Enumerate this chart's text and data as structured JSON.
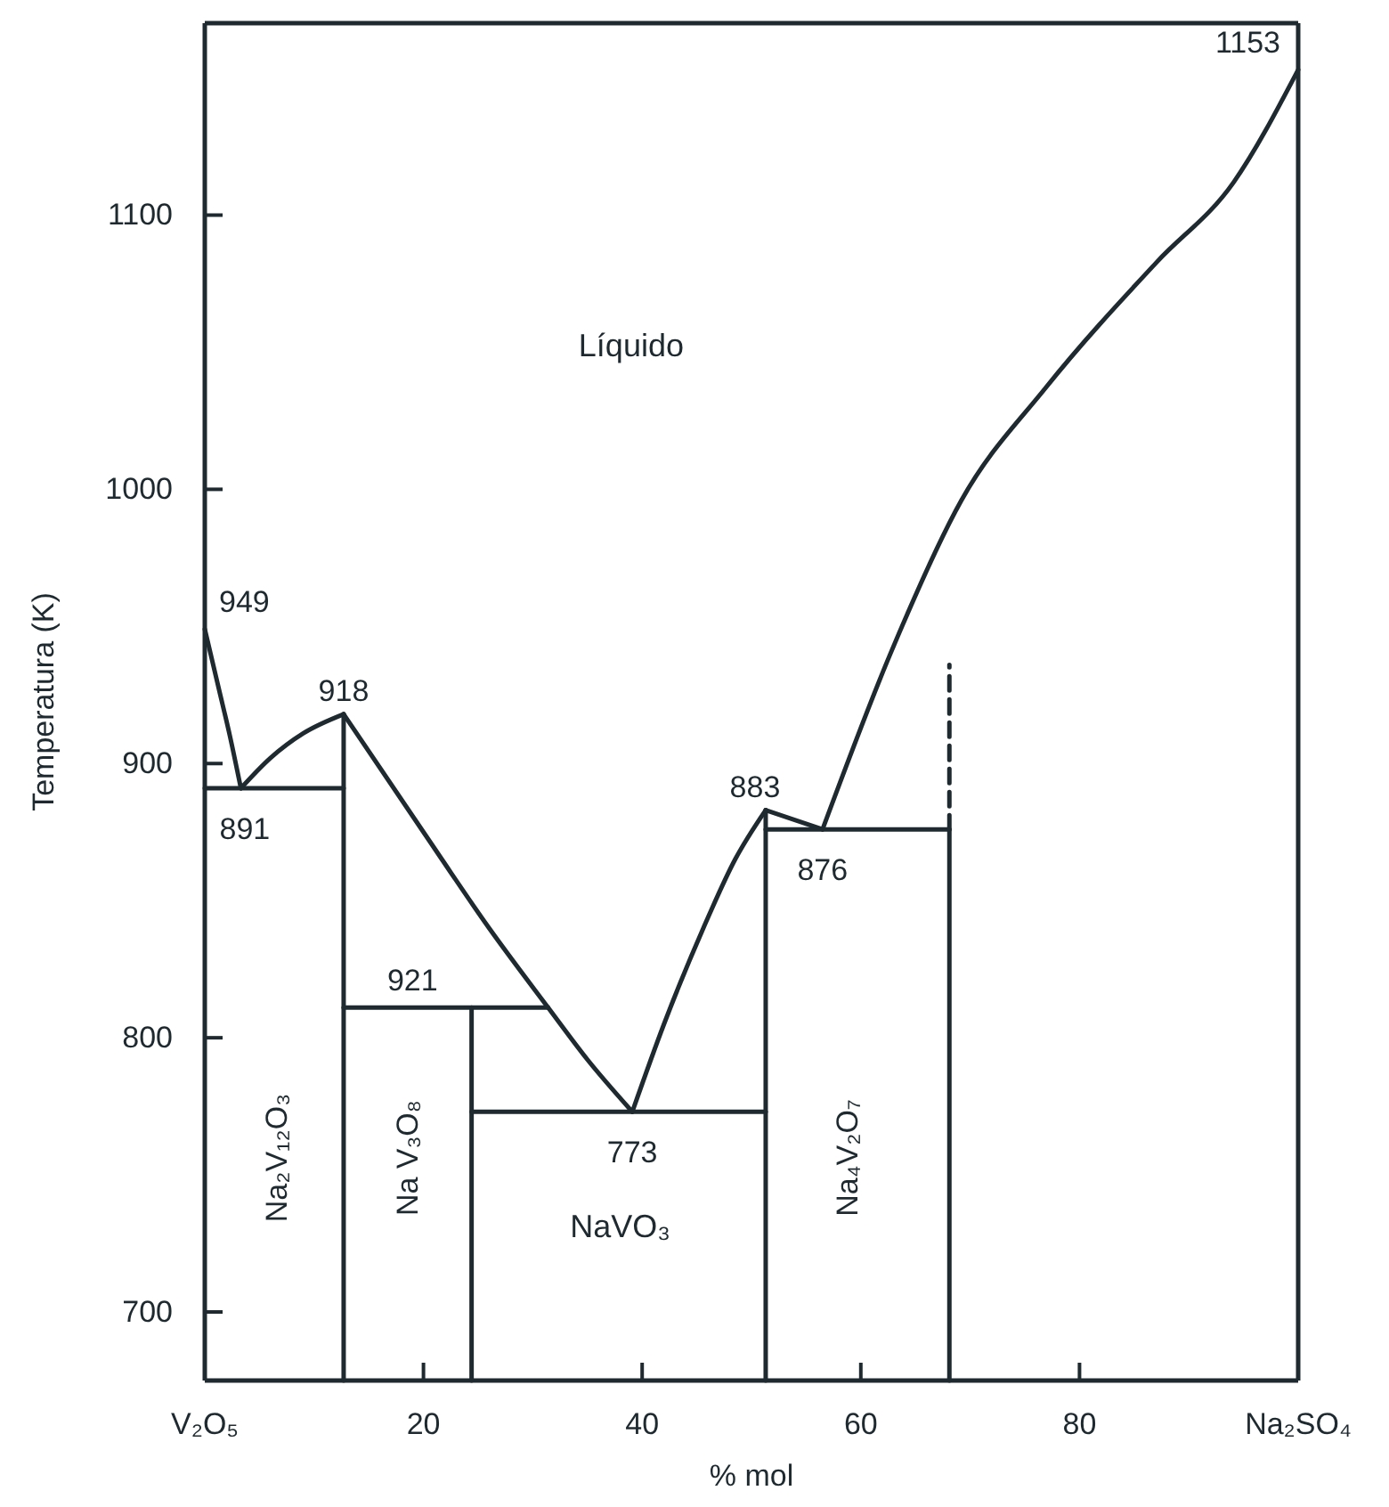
{
  "chart_data": {
    "type": "line",
    "xlabel": "% mol",
    "ylabel": "Temperatura (K)",
    "xlim": [
      0,
      100
    ],
    "ylim": [
      675,
      1170
    ],
    "xticks": [
      {
        "value": 0,
        "label": "V₂O₅"
      },
      20,
      40,
      60,
      80,
      {
        "value": 100,
        "label": "Na₂SO₄"
      }
    ],
    "yticks": [
      700,
      800,
      900,
      1000,
      1100
    ],
    "grid": false,
    "marker": "none",
    "series": [
      {
        "color": "#1e2a30",
        "x": [
          0,
          1.3,
          2.3,
          3.3
        ],
        "values": [
          949,
          927,
          910,
          891
        ]
      },
      {
        "color": "#1e2a30",
        "x": [
          3.3,
          6,
          9,
          12.7
        ],
        "values": [
          891,
          902,
          911,
          918
        ]
      },
      {
        "color": "#1e2a30",
        "x": [
          12.7,
          20,
          26,
          31.4,
          35,
          39.1
        ],
        "values": [
          918,
          875,
          840,
          811,
          792,
          773
        ]
      },
      {
        "color": "#1e2a30",
        "x": [
          39.1,
          42,
          45.6,
          48.5,
          51.3
        ],
        "values": [
          773,
          805,
          840,
          865,
          883
        ]
      },
      {
        "color": "#1e2a30",
        "x": [
          51.3,
          56.5
        ],
        "values": [
          883,
          876
        ]
      },
      {
        "color": "#1e2a30",
        "x": [
          56.5,
          62.7,
          69.2,
          76.9,
          87.1,
          94.1,
          100
        ],
        "values": [
          876,
          940,
          996,
          1037,
          1083,
          1112,
          1153
        ]
      },
      {
        "color": "#1e2a30",
        "x": [
          0,
          12.7
        ],
        "values": [
          891,
          891
        ]
      },
      {
        "color": "#1e2a30",
        "x": [
          12.7,
          12.7
        ],
        "values": [
          675,
          918
        ]
      },
      {
        "color": "#1e2a30",
        "x": [
          12.7,
          31.4
        ],
        "values": [
          811,
          811
        ]
      },
      {
        "color": "#1e2a30",
        "x": [
          24.4,
          24.4
        ],
        "values": [
          675,
          811
        ]
      },
      {
        "color": "#1e2a30",
        "x": [
          24.4,
          51.3
        ],
        "values": [
          773,
          773
        ]
      },
      {
        "color": "#1e2a30",
        "x": [
          51.3,
          51.3
        ],
        "values": [
          675,
          883
        ]
      },
      {
        "color": "#1e2a30",
        "x": [
          51.3,
          68.1
        ],
        "values": [
          876,
          876
        ]
      },
      {
        "color": "#1e2a30",
        "x": [
          68.1,
          68.1
        ],
        "values": [
          675,
          876
        ]
      },
      {
        "color": "#1e2a30",
        "line_style": "dashed",
        "x": [
          68.1,
          68.1
        ],
        "values": [
          876,
          936
        ]
      }
    ],
    "annotations": [
      "Líquido",
      {
        "text": "949",
        "x": 0,
        "y": 949
      },
      {
        "text": "918",
        "x": 12.7,
        "y": 918
      },
      {
        "text": "891",
        "x": 3.3,
        "y": 891
      },
      {
        "text": "921",
        "x": 19,
        "y": 811
      },
      {
        "text": "773",
        "x": 39.1,
        "y": 773
      },
      {
        "text": "883",
        "x": 51.3,
        "y": 883
      },
      {
        "text": "876",
        "x": 56.5,
        "y": 876
      },
      {
        "text": "1153",
        "x": 100,
        "y": 1153
      },
      "Na₂V₁₂O₃",
      "Na V₃O₈",
      "NaVO₃",
      "Na₄V₂O₇"
    ]
  }
}
